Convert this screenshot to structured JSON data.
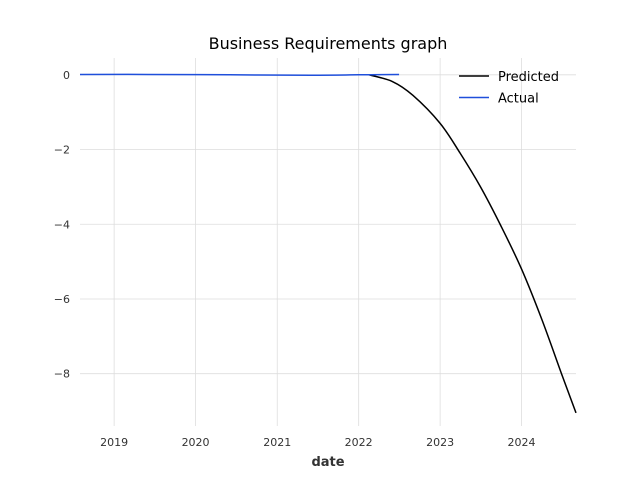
{
  "chart_data": {
    "type": "line",
    "title": "Business Requirements graph",
    "xlabel": "date",
    "ylabel": "",
    "x_type": "date",
    "xlim": [
      "2018-08-01",
      "2024-09-01"
    ],
    "ylim": [
      -9.4,
      0.45
    ],
    "x_ticks": [
      "2019",
      "2020",
      "2021",
      "2022",
      "2023",
      "2024"
    ],
    "y_ticks": [
      0,
      -2,
      -4,
      -6,
      -8
    ],
    "grid": true,
    "legend_position": "top-right",
    "series": [
      {
        "name": "Predicted",
        "color": "#000000",
        "points": [
          {
            "x": "2022-02-15",
            "y": 0.0
          },
          {
            "x": "2022-06-01",
            "y": -0.18
          },
          {
            "x": "2022-09-01",
            "y": -0.55
          },
          {
            "x": "2023-01-01",
            "y": -1.3
          },
          {
            "x": "2023-04-01",
            "y": -2.1
          },
          {
            "x": "2023-07-01",
            "y": -3.0
          },
          {
            "x": "2023-10-01",
            "y": -4.05
          },
          {
            "x": "2024-01-01",
            "y": -5.2
          },
          {
            "x": "2024-04-01",
            "y": -6.55
          },
          {
            "x": "2024-07-01",
            "y": -8.05
          },
          {
            "x": "2024-09-01",
            "y": -9.05
          }
        ]
      },
      {
        "name": "Actual",
        "color": "#1f4fdb",
        "points": [
          {
            "x": "2018-08-01",
            "y": 0.01
          },
          {
            "x": "2019-06-01",
            "y": 0.01
          },
          {
            "x": "2020-06-01",
            "y": 0.0
          },
          {
            "x": "2021-06-01",
            "y": -0.01
          },
          {
            "x": "2022-01-01",
            "y": 0.0
          },
          {
            "x": "2022-07-01",
            "y": 0.01
          }
        ]
      }
    ]
  }
}
